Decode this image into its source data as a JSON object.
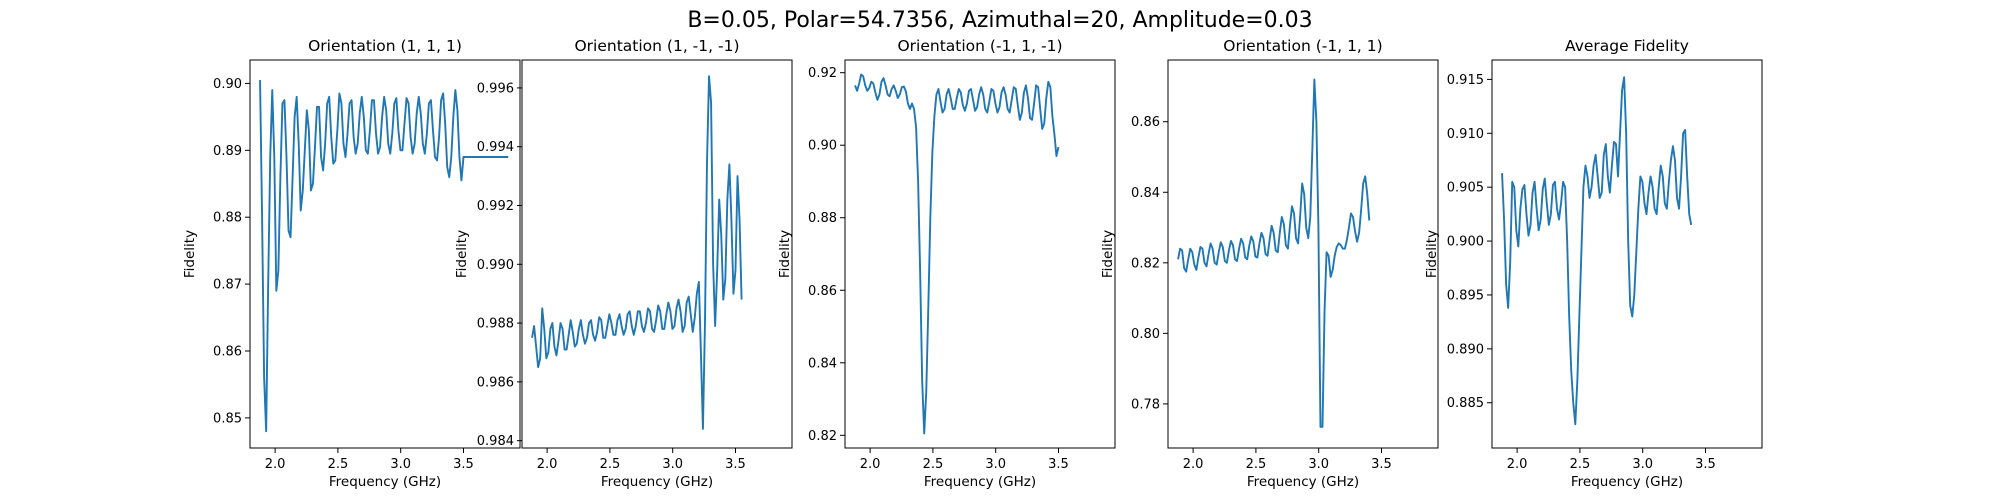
{
  "figure": {
    "suptitle": "B=0.05, Polar=54.7356, Azimuthal=20, Amplitude=0.03"
  },
  "chart_data": [
    {
      "type": "line",
      "title": "Orientation (1, 1, 1)",
      "xlabel": "Frequency (GHz)",
      "ylabel": "Fidelity",
      "xlim": [
        1.8,
        3.95
      ],
      "ylim": [
        0.8455,
        0.9035
      ],
      "xticks": [
        2.0,
        2.5,
        3.0,
        3.5
      ],
      "yticks": [
        0.85,
        0.86,
        0.87,
        0.88,
        0.89,
        0.9
      ],
      "grid": false,
      "color": "#1f77b4",
      "series": [
        {
          "x_start": 1.88,
          "x_step": 0.0162,
          "values": [
            0.9005,
            0.88,
            0.856,
            0.848,
            0.87,
            0.889,
            0.899,
            0.889,
            0.869,
            0.872,
            0.886,
            0.897,
            0.8975,
            0.889,
            0.878,
            0.877,
            0.886,
            0.895,
            0.898,
            0.891,
            0.881,
            0.884,
            0.89,
            0.896,
            0.893,
            0.884,
            0.885,
            0.8905,
            0.8965,
            0.8965,
            0.889,
            0.887,
            0.891,
            0.897,
            0.898,
            0.892,
            0.888,
            0.8885,
            0.893,
            0.8985,
            0.897,
            0.891,
            0.889,
            0.8925,
            0.897,
            0.8975,
            0.892,
            0.8895,
            0.891,
            0.8955,
            0.898,
            0.895,
            0.89,
            0.8895,
            0.893,
            0.8975,
            0.8975,
            0.8925,
            0.8895,
            0.8905,
            0.895,
            0.898,
            0.896,
            0.891,
            0.8895,
            0.8925,
            0.897,
            0.8978,
            0.893,
            0.89,
            0.89,
            0.894,
            0.8978,
            0.897,
            0.892,
            0.8895,
            0.891,
            0.8955,
            0.898,
            0.8955,
            0.891,
            0.8895,
            0.8925,
            0.897,
            0.8975,
            0.893,
            0.889,
            0.8885,
            0.892,
            0.8975,
            0.8985,
            0.894,
            0.8875,
            0.886,
            0.889,
            0.895,
            0.899,
            0.896,
            0.889,
            0.8855,
            0.889,
            0.889,
            0.889,
            0.889,
            0.889,
            0.889,
            0.889,
            0.889,
            0.889,
            0.889,
            0.889,
            0.889,
            0.889,
            0.889,
            0.889,
            0.889,
            0.889,
            0.889,
            0.889,
            0.889,
            0.889,
            0.889,
            0.889
          ]
        }
      ]
    },
    {
      "type": "line",
      "title": "Orientation (1, -1, -1)",
      "xlabel": "Frequency (GHz)",
      "ylabel": "Fidelity",
      "xlim": [
        1.8,
        3.95
      ],
      "ylim": [
        0.98375,
        0.99695
      ],
      "xticks": [
        2.0,
        2.5,
        3.0,
        3.5
      ],
      "yticks": [
        0.984,
        0.986,
        0.988,
        0.99,
        0.992,
        0.994,
        0.996
      ],
      "grid": false,
      "color": "#1f77b4",
      "series": [
        {
          "x_start": 1.88,
          "x_step": 0.0162,
          "values": [
            0.9875,
            0.9879,
            0.9872,
            0.9865,
            0.9868,
            0.9885,
            0.9878,
            0.9868,
            0.987,
            0.9878,
            0.988,
            0.9872,
            0.9869,
            0.9874,
            0.988,
            0.9878,
            0.9871,
            0.9871,
            0.9876,
            0.9881,
            0.9877,
            0.9872,
            0.9873,
            0.9878,
            0.9881,
            0.9876,
            0.9873,
            0.9875,
            0.988,
            0.9881,
            0.9876,
            0.9874,
            0.9877,
            0.9882,
            0.9881,
            0.9875,
            0.9875,
            0.9879,
            0.9883,
            0.988,
            0.9876,
            0.9876,
            0.9881,
            0.9883,
            0.9879,
            0.9876,
            0.9878,
            0.9883,
            0.9884,
            0.9879,
            0.9876,
            0.9879,
            0.9884,
            0.9884,
            0.9879,
            0.9877,
            0.988,
            0.9885,
            0.9884,
            0.9878,
            0.9877,
            0.9881,
            0.9886,
            0.9884,
            0.9878,
            0.9878,
            0.9883,
            0.9887,
            0.9884,
            0.9878,
            0.9879,
            0.9885,
            0.9888,
            0.9884,
            0.9877,
            0.9879,
            0.9887,
            0.9889,
            0.9883,
            0.9877,
            0.9882,
            0.989,
            0.9894,
            0.987,
            0.9844,
            0.988,
            0.9935,
            0.9964,
            0.9955,
            0.99,
            0.9879,
            0.9898,
            0.9922,
            0.991,
            0.9888,
            0.9895,
            0.9922,
            0.9934,
            0.9915,
            0.989,
            0.9898,
            0.993,
            0.9915,
            0.9888
          ]
        }
      ]
    },
    {
      "type": "line",
      "title": "Orientation (-1, 1, -1)",
      "xlabel": "Frequency (GHz)",
      "ylabel": "Fidelity",
      "xlim": [
        1.8,
        3.95
      ],
      "ylim": [
        0.8165,
        0.9235
      ],
      "xticks": [
        2.0,
        2.5,
        3.0,
        3.5
      ],
      "yticks": [
        0.82,
        0.84,
        0.86,
        0.88,
        0.9,
        0.92
      ],
      "grid": false,
      "color": "#1f77b4",
      "series": [
        {
          "x_start": 1.88,
          "x_step": 0.0162,
          "values": [
            0.9165,
            0.915,
            0.917,
            0.9195,
            0.919,
            0.9165,
            0.915,
            0.9158,
            0.9175,
            0.917,
            0.9145,
            0.9125,
            0.914,
            0.9175,
            0.9185,
            0.9165,
            0.914,
            0.9135,
            0.9155,
            0.9165,
            0.915,
            0.913,
            0.914,
            0.916,
            0.9162,
            0.9148,
            0.9115,
            0.91,
            0.9115,
            0.91,
            0.905,
            0.89,
            0.865,
            0.835,
            0.8205,
            0.832,
            0.855,
            0.88,
            0.898,
            0.908,
            0.914,
            0.9155,
            0.912,
            0.909,
            0.91,
            0.914,
            0.9155,
            0.913,
            0.91,
            0.91,
            0.913,
            0.9155,
            0.9145,
            0.911,
            0.9095,
            0.9115,
            0.915,
            0.9155,
            0.9125,
            0.9095,
            0.9105,
            0.914,
            0.916,
            0.914,
            0.91,
            0.909,
            0.912,
            0.9155,
            0.915,
            0.9115,
            0.909,
            0.9105,
            0.9145,
            0.916,
            0.914,
            0.91,
            0.909,
            0.9125,
            0.916,
            0.9155,
            0.911,
            0.907,
            0.909,
            0.9145,
            0.9165,
            0.913,
            0.9075,
            0.907,
            0.9115,
            0.9165,
            0.916,
            0.91,
            0.9045,
            0.906,
            0.913,
            0.9175,
            0.916,
            0.908,
            0.903,
            0.897,
            0.8995
          ]
        }
      ]
    },
    {
      "type": "line",
      "title": "Orientation (-1, 1, 1)",
      "xlabel": "Frequency (GHz)",
      "ylabel": "Fidelity",
      "xlim": [
        1.8,
        3.95
      ],
      "ylim": [
        0.7675,
        0.8775
      ],
      "xticks": [
        2.0,
        2.5,
        3.0,
        3.5
      ],
      "yticks": [
        0.78,
        0.8,
        0.82,
        0.84,
        0.86
      ],
      "grid": false,
      "color": "#1f77b4",
      "series": [
        {
          "x_start": 1.88,
          "x_step": 0.0162,
          "values": [
            0.821,
            0.824,
            0.8235,
            0.8185,
            0.8175,
            0.821,
            0.824,
            0.823,
            0.8195,
            0.818,
            0.8215,
            0.8245,
            0.824,
            0.82,
            0.819,
            0.8225,
            0.8255,
            0.824,
            0.82,
            0.8195,
            0.823,
            0.8258,
            0.8245,
            0.8205,
            0.82,
            0.8235,
            0.8262,
            0.825,
            0.821,
            0.8205,
            0.824,
            0.8268,
            0.8255,
            0.8215,
            0.821,
            0.8248,
            0.8275,
            0.826,
            0.8218,
            0.8215,
            0.8255,
            0.8285,
            0.827,
            0.8225,
            0.822,
            0.8265,
            0.8305,
            0.8285,
            0.8235,
            0.823,
            0.8285,
            0.833,
            0.831,
            0.825,
            0.824,
            0.8305,
            0.836,
            0.834,
            0.827,
            0.8255,
            0.833,
            0.8425,
            0.8395,
            0.83,
            0.827,
            0.833,
            0.852,
            0.872,
            0.86,
            0.83,
            0.7735,
            0.7735,
            0.806,
            0.823,
            0.822,
            0.816,
            0.818,
            0.822,
            0.8245,
            0.8255,
            0.825,
            0.824,
            0.824,
            0.8265,
            0.83,
            0.834,
            0.833,
            0.829,
            0.826,
            0.8285,
            0.835,
            0.8425,
            0.8445,
            0.8395,
            0.832
          ]
        }
      ]
    },
    {
      "type": "line",
      "title": "Average Fidelity",
      "xlabel": "Frequency (GHz)",
      "ylabel": "Fidelity",
      "xlim": [
        1.8,
        3.95
      ],
      "ylim": [
        0.8808,
        0.9168
      ],
      "xticks": [
        2.0,
        2.5,
        3.0,
        3.5
      ],
      "yticks": [
        0.885,
        0.89,
        0.895,
        0.9,
        0.905,
        0.91,
        0.915
      ],
      "grid": false,
      "color": "#1f77b4",
      "series": [
        {
          "x_start": 1.88,
          "x_step": 0.0162,
          "values": [
            0.9063,
            0.902,
            0.896,
            0.8938,
            0.898,
            0.9055,
            0.905,
            0.901,
            0.8995,
            0.903,
            0.9048,
            0.9052,
            0.9025,
            0.9005,
            0.9015,
            0.9045,
            0.9055,
            0.903,
            0.901,
            0.902,
            0.9048,
            0.9058,
            0.9035,
            0.9015,
            0.9025,
            0.9052,
            0.9055,
            0.903,
            0.902,
            0.9035,
            0.9055,
            0.905,
            0.9,
            0.893,
            0.888,
            0.885,
            0.883,
            0.887,
            0.893,
            0.899,
            0.905,
            0.907,
            0.906,
            0.904,
            0.905,
            0.907,
            0.908,
            0.906,
            0.904,
            0.9045,
            0.908,
            0.909,
            0.906,
            0.9045,
            0.907,
            0.9092,
            0.909,
            0.906,
            0.91,
            0.914,
            0.9152,
            0.91,
            0.9,
            0.894,
            0.893,
            0.895,
            0.899,
            0.903,
            0.906,
            0.9055,
            0.9035,
            0.9025,
            0.9045,
            0.906,
            0.905,
            0.903,
            0.9025,
            0.905,
            0.907,
            0.906,
            0.9035,
            0.903,
            0.9055,
            0.9075,
            0.9088,
            0.9075,
            0.904,
            0.903,
            0.906,
            0.91,
            0.9103,
            0.906,
            0.9025,
            0.9015
          ]
        }
      ]
    }
  ]
}
